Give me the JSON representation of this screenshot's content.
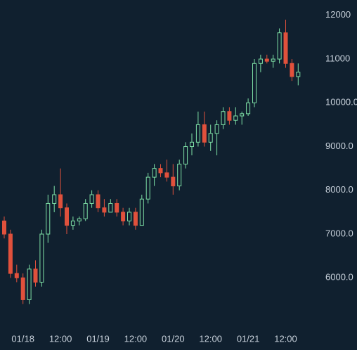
{
  "chart_data": {
    "type": "candlestick",
    "categories": [
      null,
      null,
      null,
      "01/18",
      null,
      null,
      null,
      null,
      null,
      "12:00",
      null,
      null,
      null,
      null,
      null,
      "01/19",
      null,
      null,
      null,
      null,
      null,
      "12:00",
      null,
      null,
      null,
      null,
      null,
      "01/20",
      null,
      null,
      null,
      null,
      null,
      "12:00",
      null,
      null,
      null,
      null,
      null,
      "01/21",
      null,
      null,
      null,
      null,
      null,
      "12:00",
      null,
      null
    ],
    "open": [
      7300,
      7000,
      6100,
      6000,
      5500,
      6200,
      5900,
      7000,
      7700,
      7900,
      7600,
      7200,
      7300,
      7350,
      7700,
      7900,
      7600,
      7500,
      7700,
      7500,
      7300,
      7500,
      7200,
      7800,
      8300,
      8500,
      8400,
      8300,
      8100,
      8600,
      9000,
      9100,
      9500,
      9100,
      9300,
      9500,
      9800,
      9600,
      9700,
      9750,
      10000,
      10900,
      11000,
      10950,
      11000,
      11600,
      10900,
      10600
    ],
    "high": [
      7400,
      7100,
      6300,
      6100,
      6300,
      6400,
      7100,
      7900,
      8100,
      8500,
      7700,
      7400,
      7400,
      7800,
      8000,
      8000,
      7800,
      7800,
      7800,
      7600,
      7600,
      7600,
      7900,
      8400,
      8600,
      8600,
      8700,
      8600,
      8700,
      9100,
      9300,
      9800,
      9800,
      9500,
      9600,
      9900,
      9900,
      9900,
      9800,
      10100,
      11000,
      11100,
      11100,
      11100,
      11700,
      11900,
      11000,
      10900
    ],
    "low": [
      6900,
      6000,
      5900,
      5400,
      5400,
      5800,
      5800,
      6800,
      7500,
      7400,
      7000,
      7100,
      7200,
      7300,
      7600,
      7500,
      7400,
      7500,
      7400,
      7200,
      7200,
      7100,
      7200,
      7700,
      8100,
      8300,
      8200,
      7900,
      8000,
      8500,
      8800,
      9000,
      9000,
      8900,
      8800,
      9400,
      9500,
      9500,
      9500,
      9700,
      9900,
      10700,
      10900,
      10800,
      10900,
      10800,
      10500,
      10400
    ],
    "close": [
      7000,
      6100,
      6000,
      5500,
      6200,
      5900,
      7000,
      7700,
      7900,
      7600,
      7200,
      7300,
      7350,
      7700,
      7900,
      7600,
      7500,
      7700,
      7500,
      7300,
      7500,
      7200,
      7800,
      8300,
      8500,
      8400,
      8300,
      8100,
      8600,
      9000,
      9100,
      9500,
      9100,
      9300,
      9500,
      9800,
      9600,
      9700,
      9750,
      10000,
      10900,
      11000,
      10950,
      11000,
      11600,
      10900,
      10600,
      10700
    ],
    "up_color": "#7ee0a6",
    "down_color": "#e0513c",
    "ylim": [
      4800,
      12350
    ],
    "yticks": [
      {
        "value": 6000,
        "label": "6000.0"
      },
      {
        "value": 7000,
        "label": "7000.0"
      },
      {
        "value": 8000,
        "label": "8000.0"
      },
      {
        "value": 9000,
        "label": "9000.0"
      },
      {
        "value": 10000,
        "label": "10000.0"
      },
      11000,
      12000
    ]
  }
}
